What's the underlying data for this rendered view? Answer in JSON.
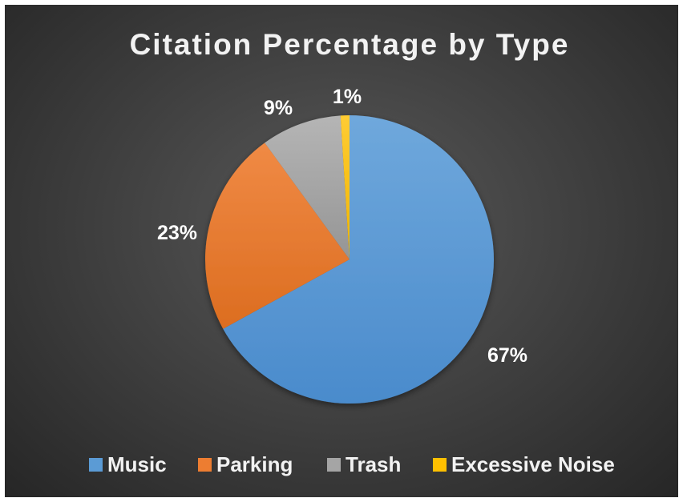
{
  "chart_data": {
    "type": "pie",
    "title": "Citation Percentage by Type",
    "categories": [
      "Music",
      "Parking",
      "Trash",
      "Excessive Noise"
    ],
    "values": [
      67,
      23,
      9,
      1
    ],
    "data_labels": [
      "67%",
      "23%",
      "9%",
      "1%"
    ],
    "colors": [
      "#5b9bd5",
      "#ed7d31",
      "#a5a5a5",
      "#ffc000"
    ],
    "legend_position": "bottom",
    "start_angle_deg": 0,
    "direction": "clockwise"
  }
}
